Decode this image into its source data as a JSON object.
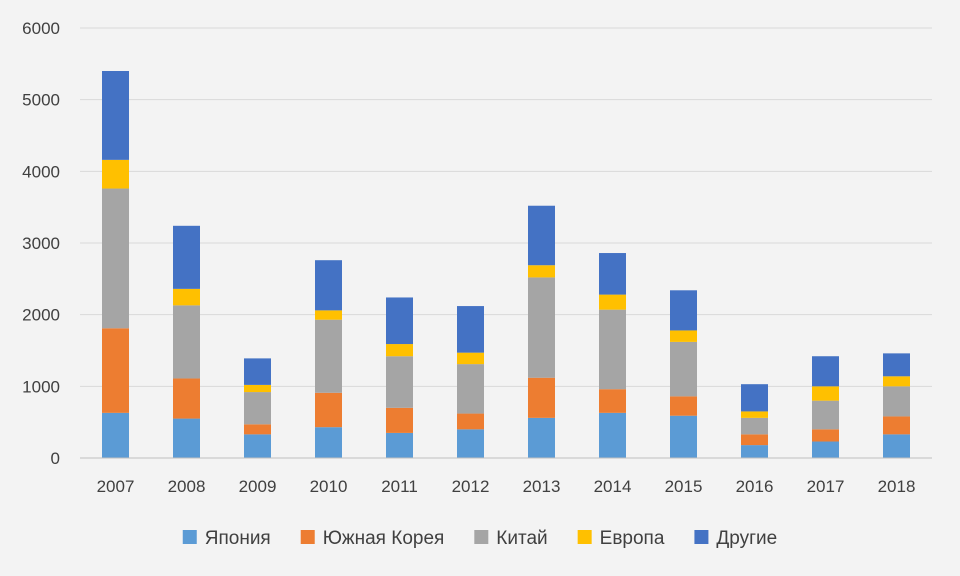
{
  "chart_data": {
    "type": "bar",
    "stacked": true,
    "categories": [
      "2007",
      "2008",
      "2009",
      "2010",
      "2011",
      "2012",
      "2013",
      "2014",
      "2015",
      "2016",
      "2017",
      "2018"
    ],
    "ylim": [
      0,
      6000
    ],
    "yticks": [
      0,
      1000,
      2000,
      3000,
      4000,
      5000,
      6000
    ],
    "grid": true,
    "legend_position": "bottom",
    "series": [
      {
        "name": "Япония",
        "color": "#5b9bd5",
        "values": [
          630,
          550,
          330,
          430,
          350,
          400,
          560,
          630,
          590,
          180,
          230,
          330
        ]
      },
      {
        "name": "Южная Корея",
        "color": "#ed7d31",
        "values": [
          1180,
          560,
          140,
          480,
          350,
          220,
          560,
          330,
          270,
          150,
          170,
          250
        ]
      },
      {
        "name": "Китай",
        "color": "#a5a5a5",
        "values": [
          1950,
          1020,
          450,
          1020,
          720,
          690,
          1400,
          1110,
          760,
          230,
          400,
          420
        ]
      },
      {
        "name": "Европа",
        "color": "#ffc000",
        "values": [
          400,
          230,
          100,
          130,
          170,
          160,
          170,
          210,
          160,
          90,
          200,
          140
        ]
      },
      {
        "name": "Другие",
        "color": "#4472c4",
        "values": [
          1240,
          880,
          370,
          700,
          650,
          650,
          830,
          580,
          560,
          380,
          420,
          320
        ]
      }
    ]
  }
}
